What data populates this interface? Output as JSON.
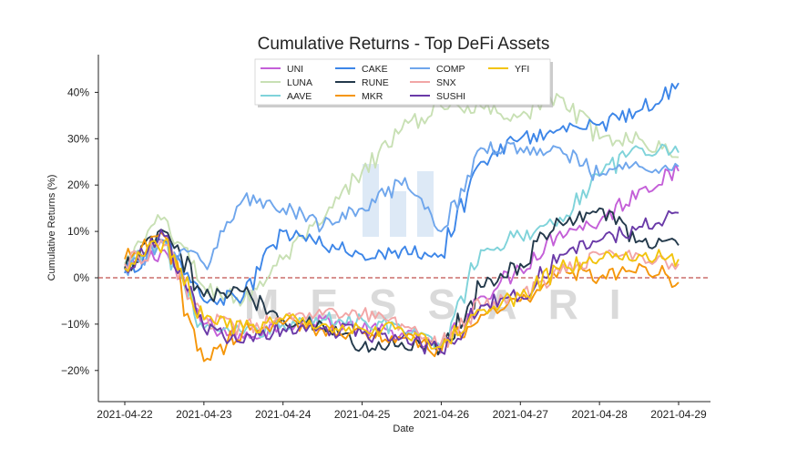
{
  "chart_data": {
    "type": "line",
    "title": "Cumulative Returns - Top DeFi Assets",
    "xlabel": "Date",
    "ylabel": "Cumulative Returns (%)",
    "x_ticks": [
      "2021-04-22",
      "2021-04-23",
      "2021-04-24",
      "2021-04-25",
      "2021-04-26",
      "2021-04-27",
      "2021-04-28",
      "2021-04-29"
    ],
    "y_ticks": [
      "−20%",
      "−10%",
      "0%",
      "10%",
      "20%",
      "30%",
      "40%"
    ],
    "y_tick_values": [
      -20,
      -10,
      0,
      10,
      20,
      30,
      40
    ],
    "xlim": [
      "2021-04-22",
      "2021-04-29"
    ],
    "ylim": [
      -27,
      48
    ],
    "reference_line": {
      "y": 0,
      "style": "dashed",
      "color": "#c0504d"
    },
    "legend_position": "top-center",
    "watermark": "MESSARI",
    "x_dates": [
      "2021-04-22",
      "2021-04-22 12:00",
      "2021-04-23",
      "2021-04-23 12:00",
      "2021-04-24",
      "2021-04-24 12:00",
      "2021-04-25",
      "2021-04-25 12:00",
      "2021-04-26",
      "2021-04-26 12:00",
      "2021-04-27",
      "2021-04-27 12:00",
      "2021-04-28",
      "2021-04-28 12:00",
      "2021-04-29"
    ],
    "series": [
      {
        "name": "UNI",
        "color": "#c45fd8",
        "values": [
          2,
          6,
          -10,
          -13,
          -10,
          -9,
          -11,
          -12,
          -16,
          -4,
          2,
          10,
          12,
          19,
          23
        ]
      },
      {
        "name": "LUNA",
        "color": "#c8e0b4",
        "values": [
          3,
          13,
          -2,
          -5,
          4,
          12,
          23,
          32,
          37,
          37,
          35,
          39,
          30,
          30,
          26
        ]
      },
      {
        "name": "AAVE",
        "color": "#7fd3da",
        "values": [
          2,
          8,
          -11,
          -12,
          -10,
          -9,
          -9,
          -11,
          -15,
          6,
          9,
          13,
          22,
          28,
          27
        ]
      },
      {
        "name": "CAKE",
        "color": "#3d86e8",
        "values": [
          1,
          8,
          -5,
          -4,
          10,
          7,
          5,
          6,
          5,
          25,
          30,
          32,
          33,
          36,
          42
        ]
      },
      {
        "name": "RUNE",
        "color": "#23394b",
        "values": [
          2,
          10,
          -4,
          -3,
          -9,
          -10,
          -15,
          -14,
          -15,
          -2,
          3,
          12,
          15,
          8,
          7
        ]
      },
      {
        "name": "MKR",
        "color": "#f5960a",
        "values": [
          4,
          9,
          -18,
          -11,
          -10,
          -11,
          -12,
          -13,
          -16,
          -8,
          -5,
          2,
          0,
          3,
          -1
        ]
      },
      {
        "name": "COMP",
        "color": "#6fa6ec",
        "values": [
          2,
          7,
          3,
          17,
          15,
          11,
          15,
          20,
          10,
          28,
          28,
          28,
          22,
          24,
          24
        ]
      },
      {
        "name": "SNX",
        "color": "#f2a6a6",
        "values": [
          3,
          7,
          -9,
          -11,
          -9,
          -8,
          -8,
          -10,
          -14,
          -6,
          -4,
          1,
          5,
          5,
          3
        ]
      },
      {
        "name": "SUSHI",
        "color": "#6a3aa8",
        "values": [
          2,
          9,
          -11,
          -14,
          -11,
          -11,
          -12,
          -13,
          -16,
          -6,
          -4,
          5,
          8,
          11,
          14
        ]
      },
      {
        "name": "YFI",
        "color": "#f2c40e",
        "values": [
          2,
          8,
          -9,
          -11,
          -9,
          -10,
          -11,
          -11,
          -15,
          -7,
          -4,
          2,
          4,
          5,
          4
        ]
      }
    ]
  }
}
